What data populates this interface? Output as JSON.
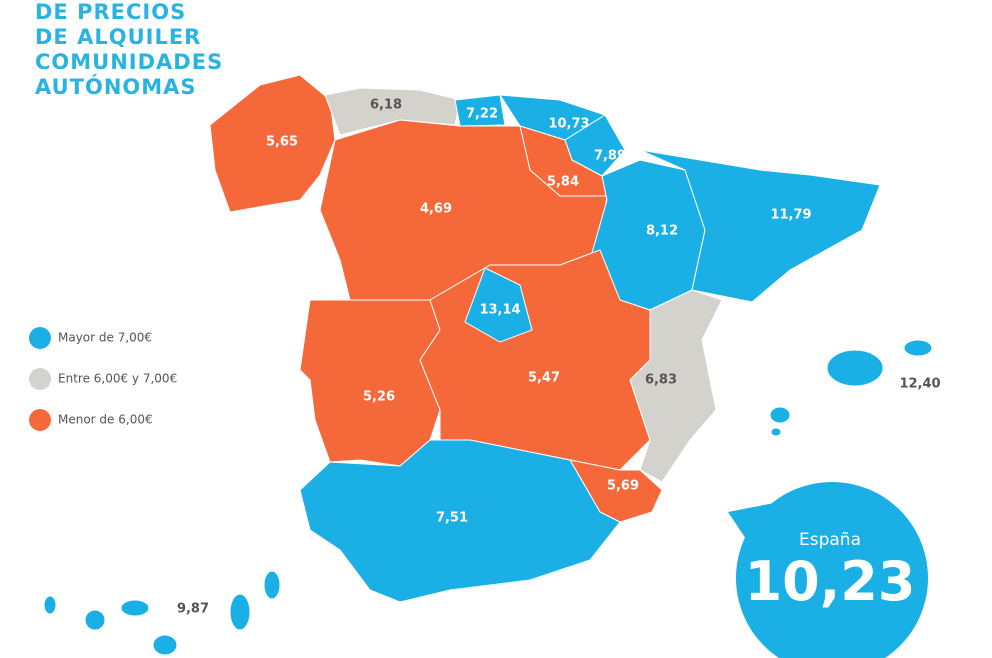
{
  "title": [
    "DE PRECIOS",
    "DE ALQUILER",
    "COMUNIDADES",
    "AUTÓNOMAS"
  ],
  "legend": [
    {
      "label": "Mayor de 7,00€",
      "color": "#1ab0e6"
    },
    {
      "label": "Entre 6,00€ y 7,00€",
      "color": "#d3d2cd"
    },
    {
      "label": "Menor de 6,00€",
      "color": "#f4683a"
    }
  ],
  "regions": [
    "5,65",
    "6,18",
    "7,22",
    "10,73",
    "7,89",
    "5,84",
    "4,69",
    "8,12",
    "11,79",
    "13,14",
    "5,26",
    "5,47",
    "6,83",
    "12,40",
    "5,69",
    "7,51",
    "9,87"
  ],
  "national": {
    "label": "España",
    "value": "10,23"
  }
}
